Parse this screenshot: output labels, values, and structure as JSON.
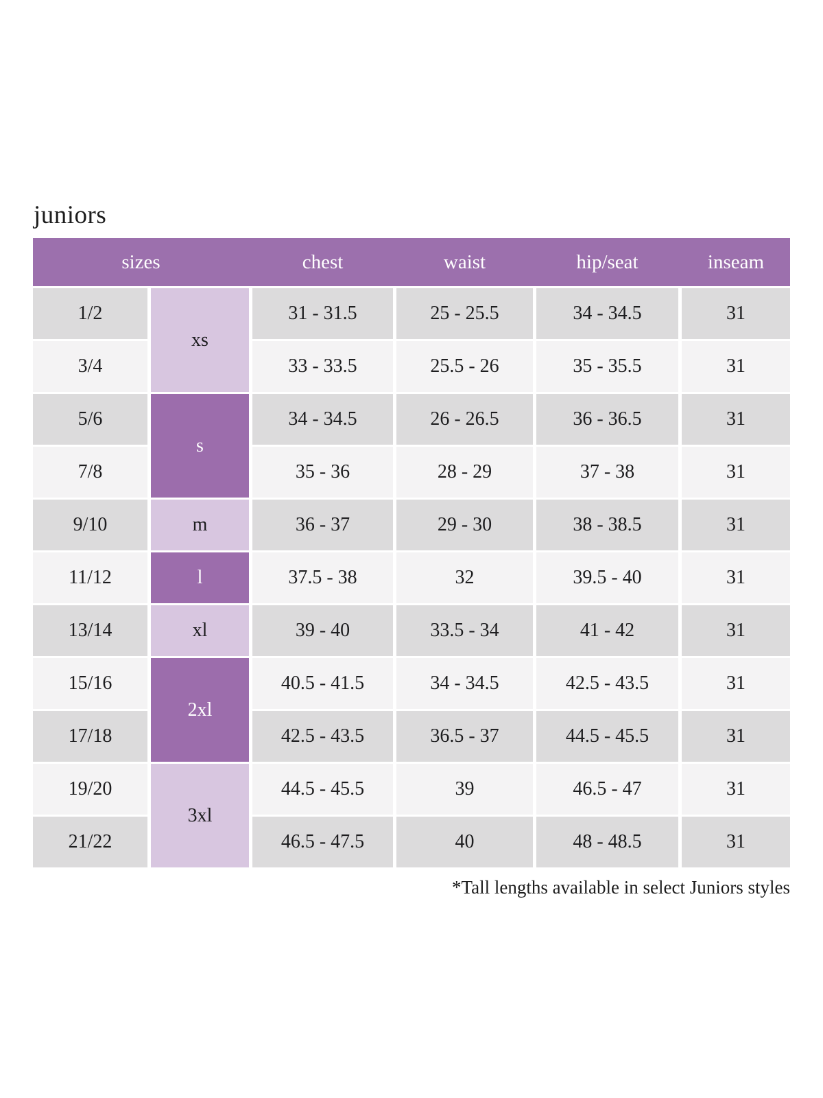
{
  "page_title": "juniors",
  "footnote": "*Tall lengths available in select Juniors styles",
  "colors": {
    "header_bg": "#9c70ad",
    "size_cell_dark_bg": "#9c6dac",
    "size_cell_light_bg": "#d8c6e0",
    "row_gray": "#dcdbdc",
    "row_light": "#f4f3f4",
    "header_text": "#ffffff",
    "body_text": "#1d1d1f"
  },
  "table": {
    "headers": [
      "sizes",
      "chest",
      "waist",
      "hip/seat",
      "inseam"
    ],
    "size_groups": [
      {
        "label": "xs",
        "rows": 2,
        "shade": "light"
      },
      {
        "label": "s",
        "rows": 2,
        "shade": "dark"
      },
      {
        "label": "m",
        "rows": 1,
        "shade": "light"
      },
      {
        "label": "l",
        "rows": 1,
        "shade": "dark"
      },
      {
        "label": "xl",
        "rows": 1,
        "shade": "light"
      },
      {
        "label": "2xl",
        "rows": 2,
        "shade": "dark"
      },
      {
        "label": "3xl",
        "rows": 2,
        "shade": "light"
      }
    ],
    "rows": [
      {
        "size": "1/2",
        "chest": "31 - 31.5",
        "waist": "25 - 25.5",
        "hip_seat": "34 - 34.5",
        "inseam": "31"
      },
      {
        "size": "3/4",
        "chest": "33 - 33.5",
        "waist": "25.5 - 26",
        "hip_seat": "35 - 35.5",
        "inseam": "31"
      },
      {
        "size": "5/6",
        "chest": "34 - 34.5",
        "waist": "26 - 26.5",
        "hip_seat": "36 - 36.5",
        "inseam": "31"
      },
      {
        "size": "7/8",
        "chest": "35 - 36",
        "waist": "28 - 29",
        "hip_seat": "37 - 38",
        "inseam": "31"
      },
      {
        "size": "9/10",
        "chest": "36 - 37",
        "waist": "29 - 30",
        "hip_seat": "38 - 38.5",
        "inseam": "31"
      },
      {
        "size": "11/12",
        "chest": "37.5 - 38",
        "waist": "32",
        "hip_seat": "39.5 - 40",
        "inseam": "31"
      },
      {
        "size": "13/14",
        "chest": "39 - 40",
        "waist": "33.5 - 34",
        "hip_seat": "41 - 42",
        "inseam": "31"
      },
      {
        "size": "15/16",
        "chest": "40.5 - 41.5",
        "waist": "34 - 34.5",
        "hip_seat": "42.5 - 43.5",
        "inseam": "31"
      },
      {
        "size": "17/18",
        "chest": "42.5 - 43.5",
        "waist": "36.5 - 37",
        "hip_seat": "44.5 - 45.5",
        "inseam": "31"
      },
      {
        "size": "19/20",
        "chest": "44.5 - 45.5",
        "waist": "39",
        "hip_seat": "46.5 - 47",
        "inseam": "31"
      },
      {
        "size": "21/22",
        "chest": "46.5 - 47.5",
        "waist": "40",
        "hip_seat": "48 - 48.5",
        "inseam": "31"
      }
    ]
  }
}
